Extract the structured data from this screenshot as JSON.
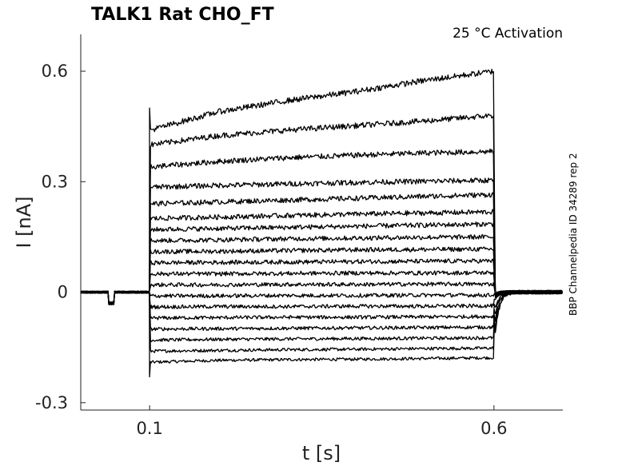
{
  "chart_data": {
    "type": "line",
    "title": "TALK1  Rat  CHO_FT",
    "annotation": "25 °C  Activation",
    "side_note": "BBP Channelpedia ID 34289 rep 2",
    "xlabel": "t [s]",
    "ylabel": "I [nA]",
    "xlim": [
      0.0,
      0.7
    ],
    "ylim": [
      -0.32,
      0.7
    ],
    "xticks": [
      0.1,
      0.6
    ],
    "xtick_labels": [
      "0.1",
      "0.6"
    ],
    "yticks": [
      -0.3,
      0,
      0.3,
      0.6
    ],
    "ytick_labels": [
      "-0.3",
      "0",
      "0.3",
      "0.6"
    ],
    "grid": false,
    "legend": "none",
    "stimulus_window_s": [
      0.1,
      0.6
    ],
    "series_count": 19,
    "series": [
      {
        "values": [
          -0.19,
          -0.185,
          -0.183,
          -0.182,
          -0.18,
          -0.178
        ]
      },
      {
        "values": [
          -0.16,
          -0.158,
          -0.156,
          -0.155,
          -0.153,
          -0.152
        ]
      },
      {
        "values": [
          -0.13,
          -0.128,
          -0.127,
          -0.126,
          -0.125,
          -0.124
        ]
      },
      {
        "values": [
          -0.1,
          -0.099,
          -0.098,
          -0.097,
          -0.096,
          -0.095
        ]
      },
      {
        "values": [
          -0.07,
          -0.069,
          -0.068,
          -0.068,
          -0.067,
          -0.066
        ]
      },
      {
        "values": [
          -0.04,
          -0.039,
          -0.039,
          -0.038,
          -0.038,
          -0.037
        ]
      },
      {
        "values": [
          -0.01,
          -0.01,
          -0.009,
          -0.009,
          -0.008,
          -0.008
        ]
      },
      {
        "values": [
          0.02,
          0.02,
          0.021,
          0.021,
          0.022,
          0.022
        ]
      },
      {
        "values": [
          0.05,
          0.05,
          0.051,
          0.052,
          0.052,
          0.053
        ]
      },
      {
        "values": [
          0.08,
          0.081,
          0.082,
          0.083,
          0.084,
          0.085
        ]
      },
      {
        "values": [
          0.11,
          0.111,
          0.113,
          0.115,
          0.116,
          0.117
        ]
      },
      {
        "values": [
          0.14,
          0.142,
          0.145,
          0.147,
          0.149,
          0.15
        ]
      },
      {
        "values": [
          0.17,
          0.173,
          0.176,
          0.179,
          0.182,
          0.185
        ]
      },
      {
        "values": [
          0.2,
          0.204,
          0.208,
          0.212,
          0.215,
          0.218
        ]
      },
      {
        "values": [
          0.24,
          0.245,
          0.25,
          0.255,
          0.26,
          0.265
        ]
      },
      {
        "values": [
          0.285,
          0.29,
          0.294,
          0.298,
          0.301,
          0.304
        ]
      },
      {
        "values": [
          0.34,
          0.355,
          0.365,
          0.372,
          0.378,
          0.382
        ]
      },
      {
        "values": [
          0.4,
          0.425,
          0.44,
          0.452,
          0.465,
          0.48
        ]
      },
      {
        "values": [
          0.44,
          0.49,
          0.52,
          0.545,
          0.575,
          0.6
        ]
      }
    ],
    "x_sample_points_s": [
      0.101,
      0.2,
      0.3,
      0.4,
      0.5,
      0.6
    ],
    "baseline_nA": 0.0,
    "transient_peak_nA": 0.5,
    "transient_trough_nA": -0.23,
    "prepulse_dip_nA": -0.03
  }
}
